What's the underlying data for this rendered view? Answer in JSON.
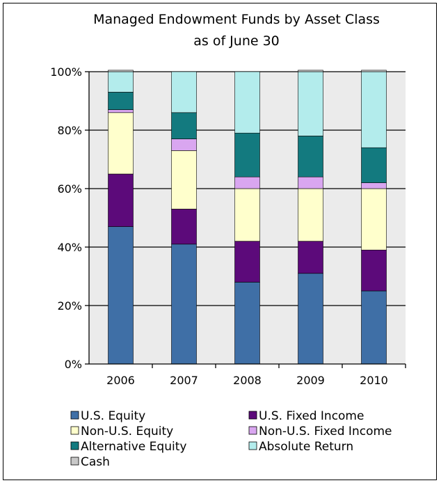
{
  "chart_data": {
    "type": "bar",
    "stacked": true,
    "title": "Managed Endowment Funds by Asset Class",
    "subtitle": "as of June 30",
    "categories": [
      "2006",
      "2007",
      "2008",
      "2009",
      "2010"
    ],
    "ylim": [
      0,
      100
    ],
    "y_ticks": [
      "0%",
      "20%",
      "40%",
      "60%",
      "80%",
      "100%"
    ],
    "grid": true,
    "legend_position": "bottom",
    "series": [
      {
        "name": "U.S. Equity",
        "color": "#3f6fa6",
        "values": [
          47,
          41,
          28,
          31,
          25
        ]
      },
      {
        "name": "U.S. Fixed Income",
        "color": "#5c0a7a",
        "values": [
          18,
          12,
          14,
          11,
          14
        ]
      },
      {
        "name": "Non-U.S. Equity",
        "color": "#ffffcc",
        "values": [
          21,
          20,
          18,
          18,
          21
        ]
      },
      {
        "name": "Non-U.S. Fixed Income",
        "color": "#d9a6f0",
        "values": [
          1,
          4,
          4,
          4,
          2
        ]
      },
      {
        "name": "Alternative Equity",
        "color": "#137a7f",
        "values": [
          6,
          9,
          15,
          14,
          12
        ]
      },
      {
        "name": "Absolute Return",
        "color": "#b3ecec",
        "values": [
          7,
          14,
          21,
          22,
          26
        ]
      },
      {
        "name": "Cash",
        "color": "#c8c8c8",
        "values": [
          0.5,
          0,
          0,
          0.5,
          0.5
        ]
      }
    ]
  }
}
